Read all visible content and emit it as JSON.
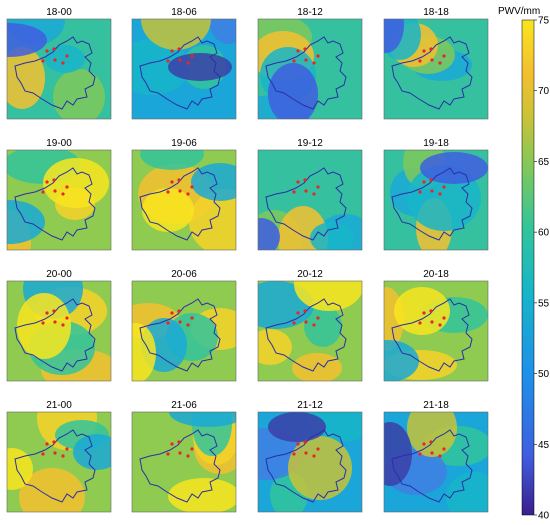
{
  "figure": {
    "colorbar": {
      "label": "PWV/mm",
      "min": 40,
      "max": 75,
      "ticks": [
        40,
        45,
        50,
        55,
        60,
        65,
        70,
        75
      ],
      "colormap": [
        "#3b1e8c",
        "#3f5ee0",
        "#1f8fe8",
        "#17b5c9",
        "#33c49b",
        "#7ec85b",
        "#c8c23a",
        "#f4c02f",
        "#f9e51f"
      ]
    },
    "panels": [
      {
        "title": "18-00",
        "scheme": "green"
      },
      {
        "title": "18-06",
        "scheme": "blue"
      },
      {
        "title": "18-12",
        "scheme": "green"
      },
      {
        "title": "18-18",
        "scheme": "green"
      },
      {
        "title": "19-00",
        "scheme": "yellow"
      },
      {
        "title": "19-06",
        "scheme": "yellow"
      },
      {
        "title": "19-12",
        "scheme": "green"
      },
      {
        "title": "19-18",
        "scheme": "green"
      },
      {
        "title": "20-00",
        "scheme": "yellow"
      },
      {
        "title": "20-06",
        "scheme": "yellow"
      },
      {
        "title": "20-12",
        "scheme": "yellow"
      },
      {
        "title": "20-18",
        "scheme": "yellow"
      },
      {
        "title": "21-00",
        "scheme": "yellow"
      },
      {
        "title": "21-06",
        "scheme": "yellow"
      },
      {
        "title": "21-12",
        "scheme": "blue"
      },
      {
        "title": "21-18",
        "scheme": "blue"
      }
    ],
    "station_color": "#e8262a",
    "boundary_color": "#2a2fa8"
  }
}
